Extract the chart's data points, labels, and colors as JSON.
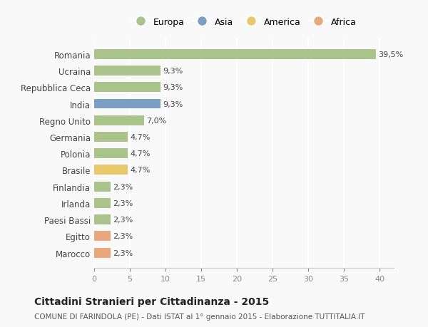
{
  "countries": [
    "Romania",
    "Ucraina",
    "Repubblica Ceca",
    "India",
    "Regno Unito",
    "Germania",
    "Polonia",
    "Brasile",
    "Finlandia",
    "Irlanda",
    "Paesi Bassi",
    "Egitto",
    "Marocco"
  ],
  "values": [
    39.5,
    9.3,
    9.3,
    9.3,
    7.0,
    4.7,
    4.7,
    4.7,
    2.3,
    2.3,
    2.3,
    2.3,
    2.3
  ],
  "labels": [
    "39,5%",
    "9,3%",
    "9,3%",
    "9,3%",
    "7,0%",
    "4,7%",
    "4,7%",
    "4,7%",
    "2,3%",
    "2,3%",
    "2,3%",
    "2,3%",
    "2,3%"
  ],
  "continents": [
    "Europa",
    "Europa",
    "Europa",
    "Asia",
    "Europa",
    "Europa",
    "Europa",
    "America",
    "Europa",
    "Europa",
    "Europa",
    "Africa",
    "Africa"
  ],
  "colors": {
    "Europa": "#a8c48a",
    "Asia": "#7b9ec5",
    "America": "#e8c86a",
    "Africa": "#e8a87c"
  },
  "legend_order": [
    "Europa",
    "Asia",
    "America",
    "Africa"
  ],
  "title": "Cittadini Stranieri per Cittadinanza - 2015",
  "subtitle": "COMUNE DI FARINDOLA (PE) - Dati ISTAT al 1° gennaio 2015 - Elaborazione TUTTITALIA.IT",
  "xlim": [
    0,
    42
  ],
  "xticks": [
    0,
    5,
    10,
    15,
    20,
    25,
    30,
    35,
    40
  ],
  "background_color": "#f9f9f9",
  "grid_color": "#ffffff"
}
